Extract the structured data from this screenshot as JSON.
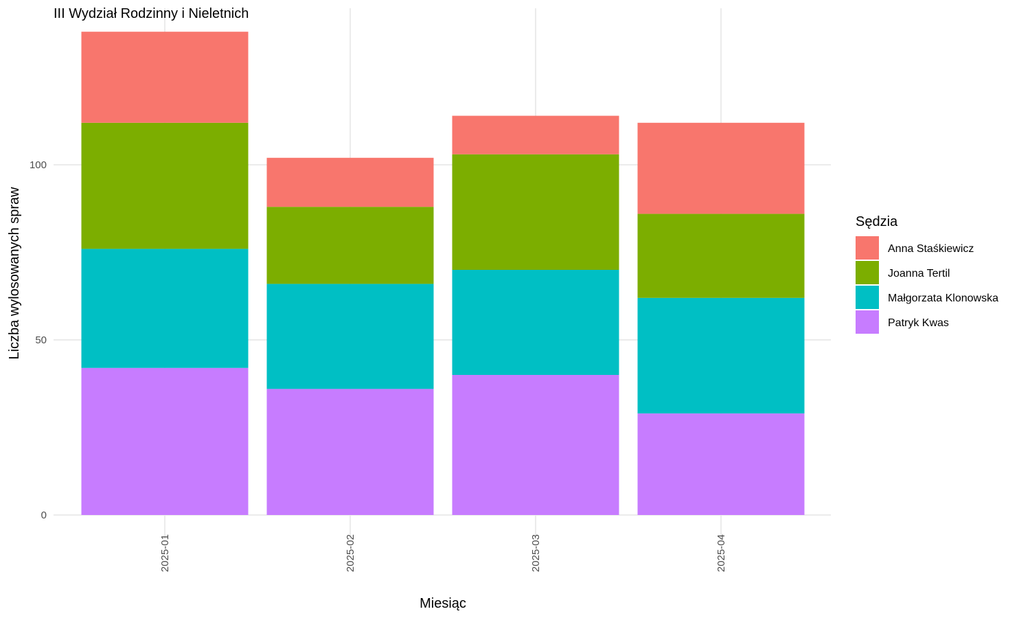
{
  "chart_data": {
    "type": "bar",
    "stacked": true,
    "title": "III Wydział Rodzinny i Nieletnich",
    "xlabel": "Miesiąc",
    "ylabel": "Liczba wylosowanych spraw",
    "categories": [
      "2025-01",
      "2025-02",
      "2025-03",
      "2025-04"
    ],
    "ylim": [
      -3,
      145
    ],
    "y_ticks": [
      0,
      50,
      100
    ],
    "grid": true,
    "legend": {
      "title": "Sędzia",
      "position": "right"
    },
    "series": [
      {
        "name": "Anna Staśkiewicz",
        "color": "#F8766D",
        "values": [
          26,
          14,
          11,
          26
        ]
      },
      {
        "name": "Joanna Tertil",
        "color": "#7CAE00",
        "values": [
          36,
          22,
          33,
          24
        ]
      },
      {
        "name": "Małgorzata Klonowska",
        "color": "#00BFC4",
        "values": [
          34,
          30,
          30,
          33
        ]
      },
      {
        "name": "Patryk Kwas",
        "color": "#C77CFF",
        "values": [
          42,
          36,
          40,
          29
        ]
      }
    ],
    "stack_order_bottom_to_top": [
      "Patryk Kwas",
      "Małgorzata Klonowska",
      "Joanna Tertil",
      "Anna Staśkiewicz"
    ]
  }
}
